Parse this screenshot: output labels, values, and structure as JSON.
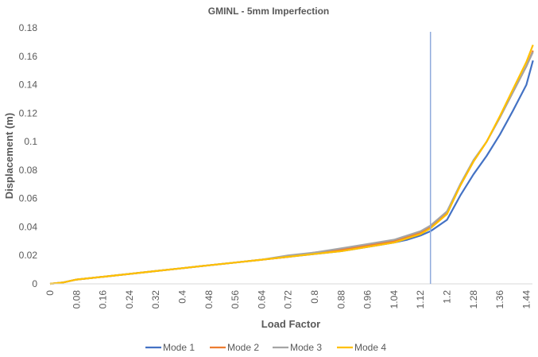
{
  "chart_data": {
    "type": "line",
    "title": "GMINL - 5mm Imperfection",
    "xlabel": "Load Factor",
    "ylabel": "Displacement (m)",
    "xlim": [
      0,
      1.46
    ],
    "ylim": [
      0,
      0.18
    ],
    "x_ticks": [
      "0",
      "0.08",
      "0.16",
      "0.24",
      "0.32",
      "0.4",
      "0.48",
      "0.56",
      "0.64",
      "0.72",
      "0.8",
      "0.88",
      "0.96",
      "1.04",
      "1.12",
      "1.2",
      "1.28",
      "1.36",
      "1.44"
    ],
    "y_ticks": [
      "0",
      "0.02",
      "0.04",
      "0.06",
      "0.08",
      "0.1",
      "0.12",
      "0.14",
      "0.16",
      "0.18"
    ],
    "grid": false,
    "legend": "bottom",
    "vertical_marker": 1.15,
    "marker_color": "#8faadc",
    "x": [
      0,
      0.04,
      0.08,
      0.16,
      0.24,
      0.32,
      0.4,
      0.48,
      0.56,
      0.64,
      0.72,
      0.8,
      0.88,
      0.96,
      1.04,
      1.08,
      1.12,
      1.15,
      1.2,
      1.24,
      1.28,
      1.32,
      1.36,
      1.4,
      1.44,
      1.46
    ],
    "series": [
      {
        "name": "Mode 1",
        "color": "#4472c4",
        "values": [
          0,
          0.001,
          0.003,
          0.005,
          0.007,
          0.009,
          0.011,
          0.013,
          0.015,
          0.017,
          0.019,
          0.021,
          0.023,
          0.026,
          0.029,
          0.031,
          0.034,
          0.037,
          0.045,
          0.062,
          0.077,
          0.09,
          0.105,
          0.122,
          0.14,
          0.157
        ]
      },
      {
        "name": "Mode 2",
        "color": "#ed7d31",
        "values": [
          0,
          0.001,
          0.003,
          0.005,
          0.007,
          0.009,
          0.011,
          0.013,
          0.015,
          0.017,
          0.019,
          0.022,
          0.024,
          0.027,
          0.03,
          0.033,
          0.036,
          0.04,
          0.05,
          0.069,
          0.086,
          0.1,
          0.117,
          0.135,
          0.153,
          0.164
        ]
      },
      {
        "name": "Mode 3",
        "color": "#a5a5a5",
        "values": [
          0,
          0.001,
          0.003,
          0.005,
          0.007,
          0.009,
          0.011,
          0.013,
          0.015,
          0.017,
          0.02,
          0.022,
          0.025,
          0.028,
          0.031,
          0.034,
          0.037,
          0.041,
          0.051,
          0.07,
          0.087,
          0.1,
          0.117,
          0.135,
          0.153,
          0.163
        ]
      },
      {
        "name": "Mode 4",
        "color": "#ffc000",
        "values": [
          0,
          0.001,
          0.003,
          0.005,
          0.007,
          0.009,
          0.011,
          0.013,
          0.015,
          0.017,
          0.019,
          0.021,
          0.023,
          0.026,
          0.029,
          0.032,
          0.035,
          0.039,
          0.049,
          0.069,
          0.086,
          0.1,
          0.118,
          0.137,
          0.156,
          0.168
        ]
      }
    ]
  }
}
